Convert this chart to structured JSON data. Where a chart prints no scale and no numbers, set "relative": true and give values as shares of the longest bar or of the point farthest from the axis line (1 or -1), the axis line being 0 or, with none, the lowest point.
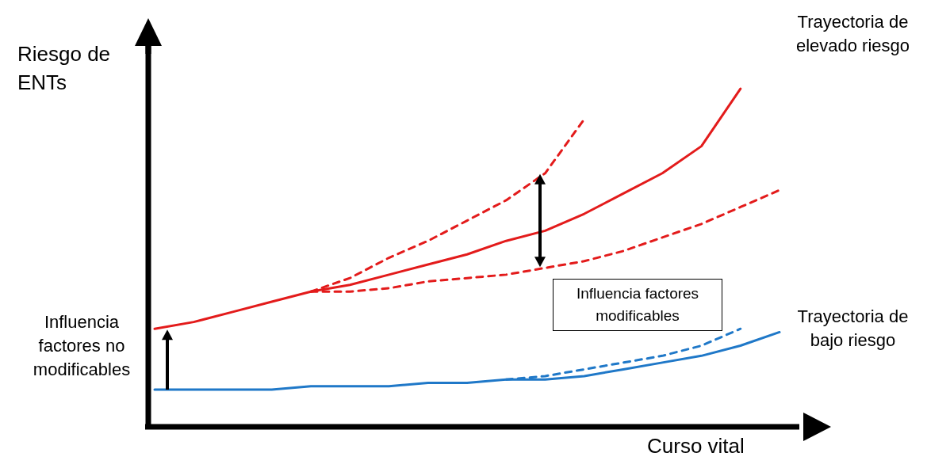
{
  "chart_data": {
    "type": "line",
    "relative": true,
    "xlabel": "Curso vital",
    "ylabel": "Riesgo de ENTs",
    "marker": "none",
    "categories": [
      null,
      null,
      null,
      null,
      null,
      null,
      null,
      null,
      null,
      null,
      null,
      null,
      null,
      null,
      null,
      null,
      null
    ],
    "series": [
      {
        "color": "#e31b1b",
        "line_style": "solid",
        "values": [
          0.29,
          0.31,
          0.34,
          0.37,
          0.4,
          0.42,
          0.45,
          0.48,
          0.51,
          0.55,
          0.58,
          0.63,
          0.69,
          0.75,
          0.83,
          1,
          null
        ]
      },
      {
        "color": "#e31b1b",
        "line_style": "dashed",
        "values": [
          null,
          null,
          null,
          null,
          0.4,
          0.44,
          0.5,
          0.55,
          0.61,
          0.67,
          0.75,
          0.91,
          null,
          null,
          null,
          null,
          null
        ]
      },
      {
        "color": "#e31b1b",
        "line_style": "dashed",
        "values": [
          null,
          null,
          null,
          null,
          0.4,
          0.4,
          0.41,
          0.43,
          0.44,
          0.45,
          0.47,
          0.49,
          0.52,
          0.56,
          0.6,
          0.65,
          0.7
        ]
      },
      {
        "color": "#1f78c8",
        "line_style": "solid",
        "values": [
          0.11,
          0.11,
          0.11,
          0.11,
          0.12,
          0.12,
          0.12,
          0.13,
          0.13,
          0.14,
          0.14,
          0.15,
          0.17,
          0.19,
          0.21,
          0.24,
          0.28
        ]
      },
      {
        "color": "#1f78c8",
        "line_style": "dashed",
        "values": [
          null,
          null,
          null,
          null,
          null,
          null,
          null,
          null,
          null,
          0.14,
          0.15,
          0.17,
          0.19,
          0.21,
          0.24,
          0.29,
          null
        ]
      }
    ],
    "annotations": [
      "Influencia factores modificables",
      "Influencia factores no modificables",
      "Trayectoria de elevado riesgo",
      "Trayectoria de bajo riesgo"
    ]
  }
}
